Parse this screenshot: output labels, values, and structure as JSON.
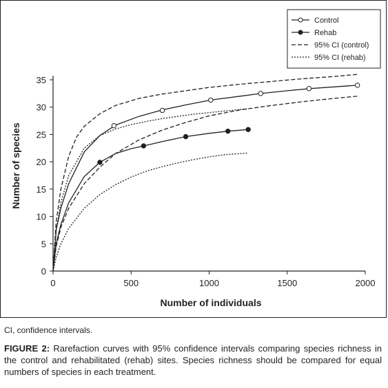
{
  "chart_data": {
    "type": "line",
    "xlabel": "Number of individuals",
    "ylabel": "Number of species",
    "xlim": [
      0,
      2000
    ],
    "ylim": [
      0,
      35
    ],
    "xticks": [
      0,
      500,
      1000,
      1500,
      2000
    ],
    "yticks": [
      0,
      5,
      10,
      15,
      20,
      25,
      30,
      35
    ],
    "grid": false,
    "legend_position": "top-right",
    "series": [
      {
        "name": "Control",
        "style": "solid",
        "marker": "open-circle",
        "color": "#231f20",
        "x": [
          0,
          20,
          50,
          100,
          200,
          300,
          400,
          550,
          700,
          850,
          1010,
          1200,
          1330,
          1500,
          1650,
          1800,
          1950
        ],
        "y": [
          0,
          7.5,
          11.5,
          16.0,
          21.8,
          24.8,
          26.7,
          28.3,
          29.5,
          30.4,
          31.3,
          32.0,
          32.5,
          33.0,
          33.4,
          33.7,
          34.0
        ],
        "markers_x": [
          390,
          700,
          1010,
          1330,
          1640,
          1950
        ],
        "markers_y": [
          26.6,
          29.4,
          31.3,
          32.5,
          33.4,
          34.0
        ]
      },
      {
        "name": "Rehab",
        "style": "solid",
        "marker": "filled-circle",
        "color": "#231f20",
        "x": [
          0,
          20,
          50,
          100,
          200,
          300,
          400,
          500,
          580,
          700,
          850,
          1000,
          1120,
          1250
        ],
        "y": [
          0,
          5.0,
          8.5,
          12.5,
          17.3,
          19.9,
          21.5,
          22.4,
          22.9,
          23.7,
          24.6,
          25.2,
          25.6,
          25.9
        ],
        "markers_x": [
          300,
          580,
          850,
          1120,
          1250
        ],
        "markers_y": [
          19.9,
          22.9,
          24.6,
          25.6,
          25.9
        ]
      },
      {
        "name": "95% CI (control)",
        "style": "dashed",
        "color": "#231f20",
        "bands": [
          {
            "x": [
              0,
              20,
              50,
              100,
              150,
              200,
              300,
              400,
              550,
              700,
              850,
              1000,
              1200,
              1400,
              1600,
              1800,
              1950
            ],
            "y": [
              0,
              9.0,
              15.0,
              21.0,
              24.5,
              26.5,
              28.8,
              30.3,
              31.6,
              32.4,
              33.0,
              33.6,
              34.2,
              34.7,
              35.2,
              35.6,
              36.0
            ]
          },
          {
            "x": [
              0,
              20,
              50,
              100,
              200,
              300,
              400,
              550,
              700,
              850,
              1000,
              1200,
              1400,
              1600,
              1800,
              1950
            ],
            "y": [
              0,
              4.5,
              8.0,
              11.5,
              16.0,
              19.0,
              21.5,
              24.0,
              25.8,
              27.2,
              28.4,
              29.5,
              30.3,
              31.0,
              31.6,
              32.0
            ]
          }
        ]
      },
      {
        "name": "95% CI (rehab)",
        "style": "dotted",
        "color": "#231f20",
        "bands": [
          {
            "x": [
              0,
              20,
              50,
              100,
              200,
              300,
              400,
              500,
              600,
              700,
              800,
              900,
              1000,
              1100,
              1250
            ],
            "y": [
              0,
              7.5,
              12.5,
              17.5,
              22.5,
              24.8,
              26.0,
              26.8,
              27.4,
              27.9,
              28.3,
              28.7,
              29.0,
              29.3,
              29.7
            ]
          },
          {
            "x": [
              0,
              20,
              50,
              100,
              200,
              300,
              400,
              500,
              600,
              700,
              800,
              900,
              1000,
              1100,
              1250
            ],
            "y": [
              0,
              2.5,
              5.0,
              7.8,
              11.5,
              14.0,
              15.8,
              17.2,
              18.3,
              19.1,
              19.8,
              20.4,
              20.9,
              21.3,
              21.6
            ]
          }
        ]
      }
    ]
  },
  "note": "CI, confidence intervals.",
  "caption": {
    "label": "FIGURE 2:",
    "text": " Rarefaction curves with 95% confidence intervals comparing species richness in the control and rehabilitated (rehab) sites. Species richness should be compared for equal numbers of species in each treatment."
  }
}
